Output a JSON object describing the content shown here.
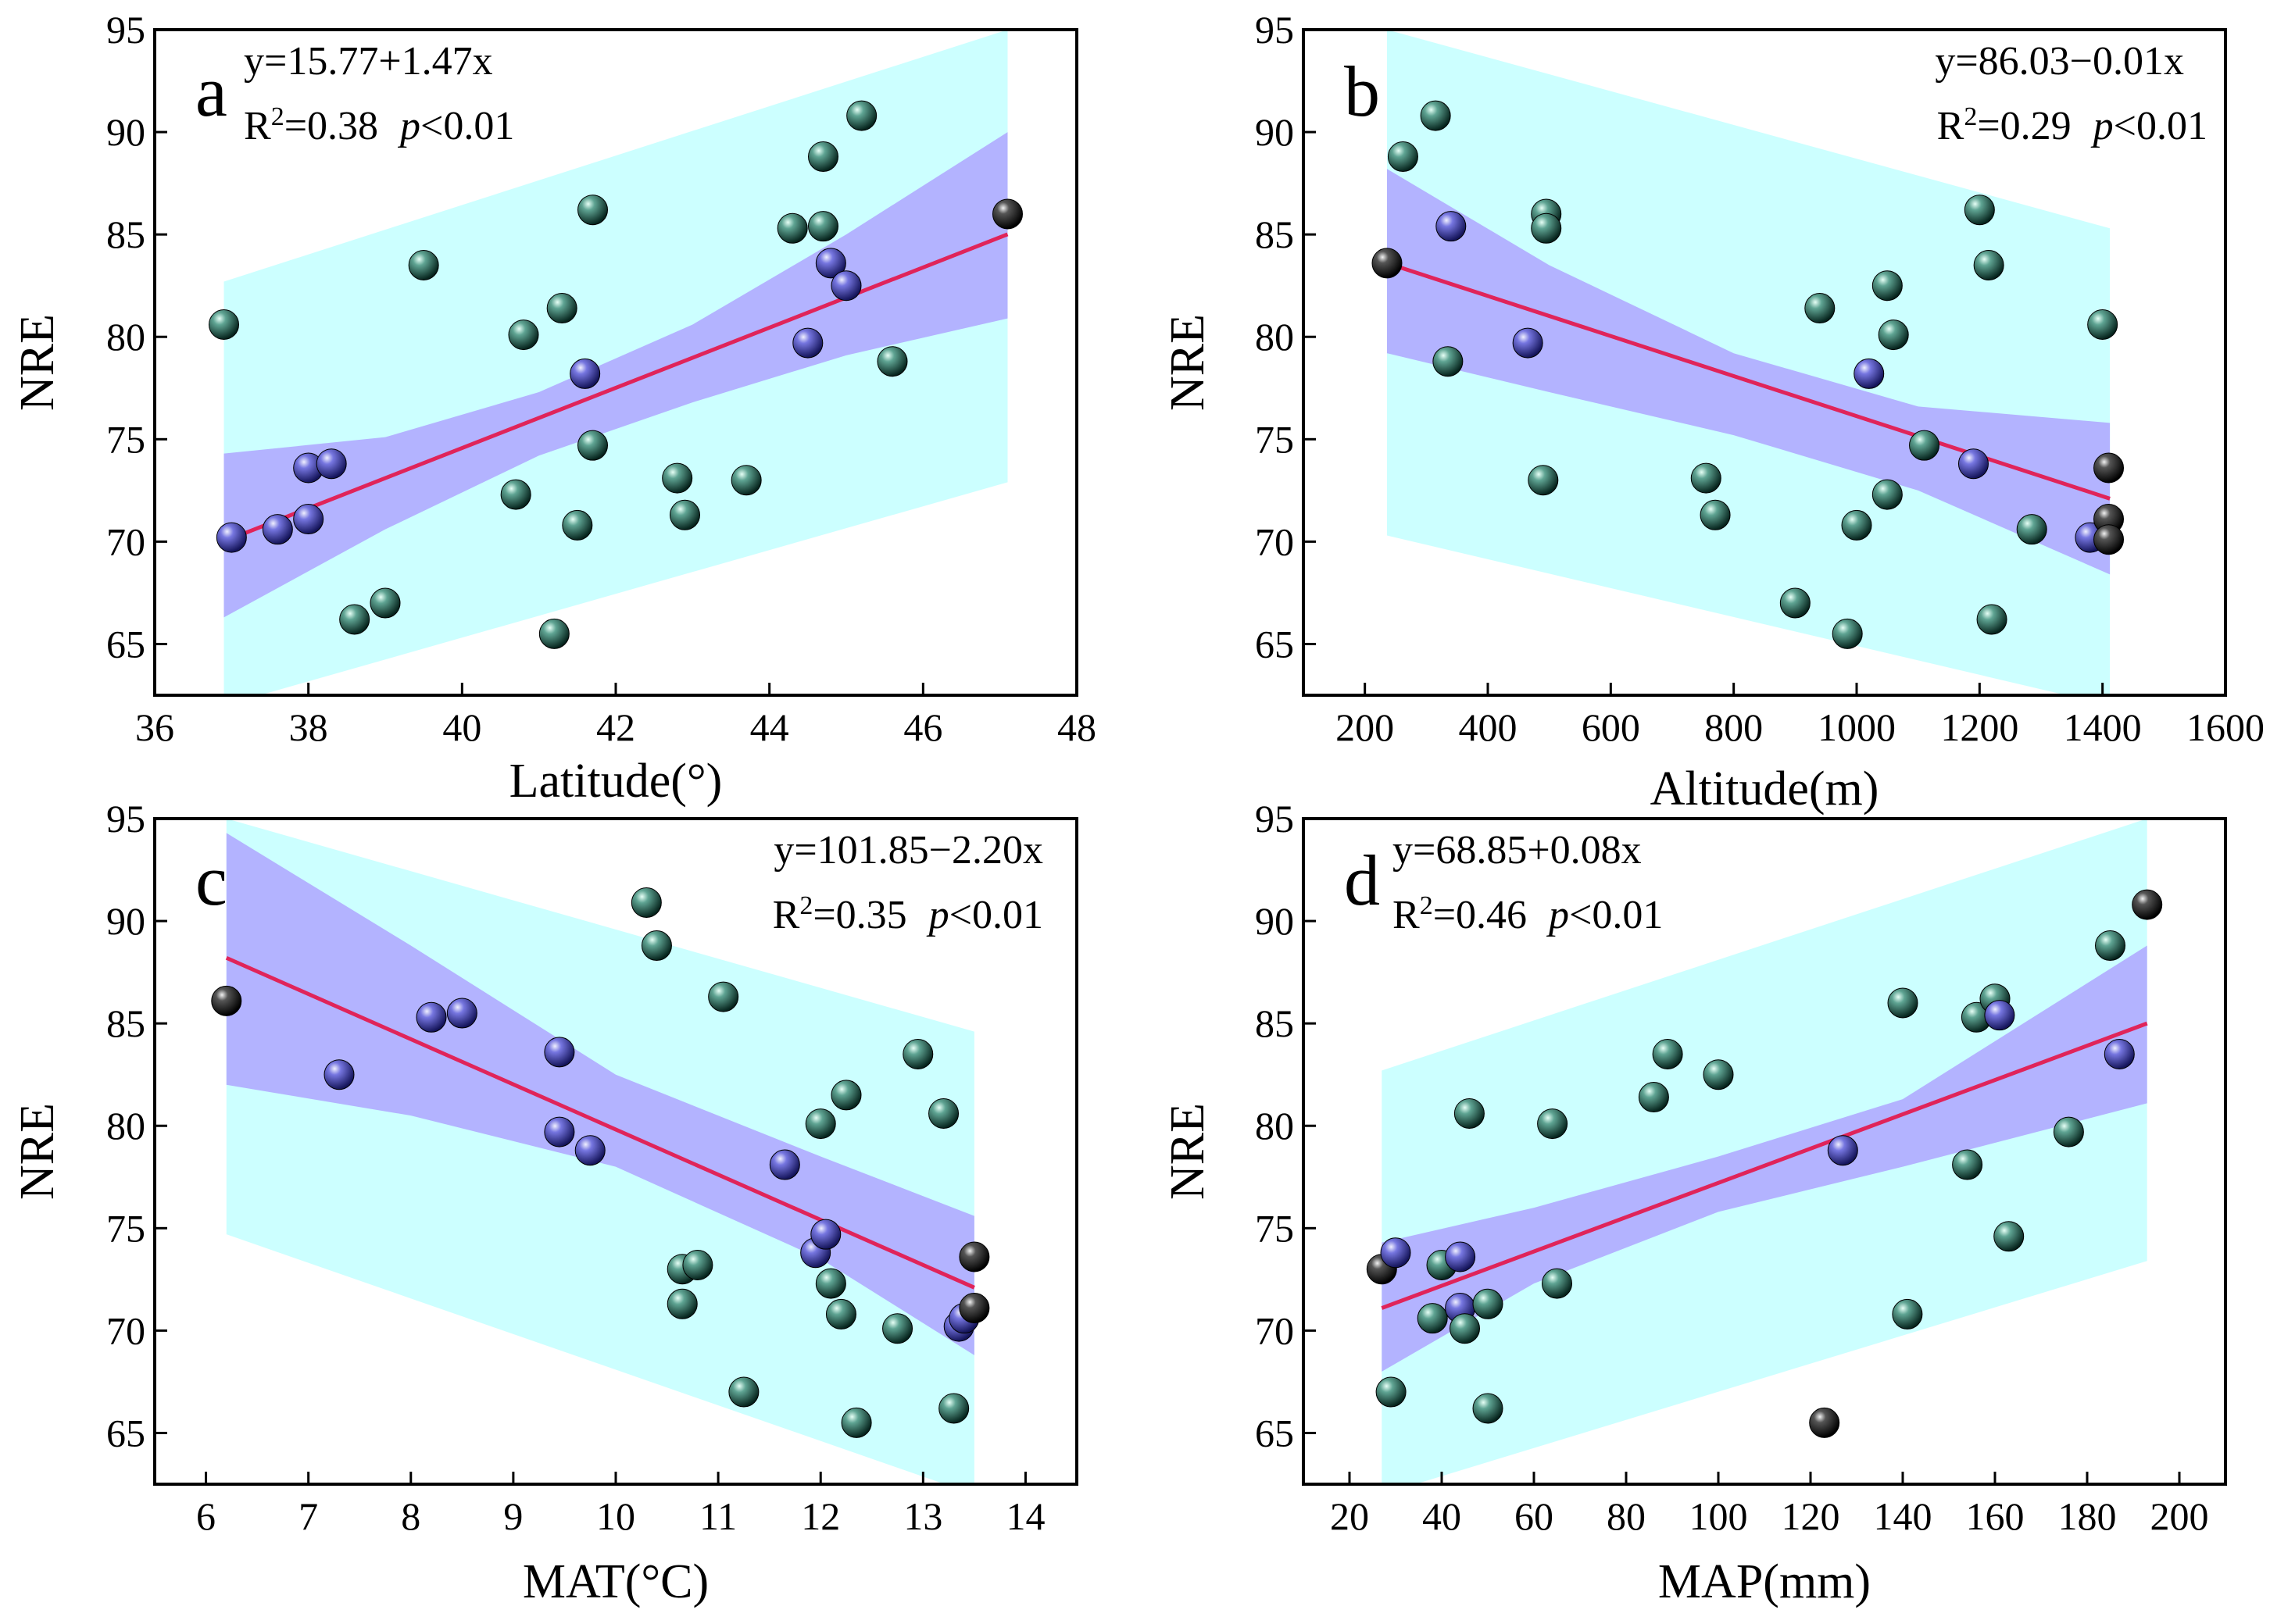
{
  "colors": {
    "prediction_band": "#ccffff",
    "confidence_band": "#b3b3ff",
    "fit_line": "#e0245a",
    "point_teal": "#1f5a4e",
    "point_blue": "#4a4ab8",
    "point_black": "#111111"
  },
  "chart_data": [
    {
      "type": "scatter",
      "panel": "a",
      "xlabel": "Latitude(°)",
      "ylabel": "NRE",
      "xlim": [
        36,
        48
      ],
      "ylim": [
        62.5,
        95
      ],
      "xticks": [
        36,
        38,
        40,
        42,
        44,
        46,
        48
      ],
      "yticks": [
        65,
        70,
        75,
        80,
        85,
        90,
        95
      ],
      "annotation": {
        "equation": "y=15.77+1.47x",
        "r2_prefix": "R",
        "r2_sup": "2",
        "r2_value": "=0.38",
        "p_label": "p",
        "p_value": "<0.01",
        "position": "top-left"
      },
      "fit": {
        "intercept": 15.77,
        "slope": 1.47,
        "x_range": [
          36.9,
          47.1
        ]
      },
      "confidence_band": {
        "x": [
          36.9,
          39.0,
          41.0,
          43.0,
          45.0,
          47.1
        ],
        "lower": [
          66.3,
          70.6,
          74.2,
          76.8,
          79.1,
          80.9
        ],
        "upper": [
          74.3,
          75.1,
          77.3,
          80.6,
          85.0,
          90.0
        ]
      },
      "prediction_band": {
        "x": [
          36.9,
          47.1
        ],
        "lower": [
          62.0,
          72.9
        ],
        "upper": [
          82.7,
          95.0
        ]
      },
      "points": [
        {
          "x": 36.9,
          "y": 80.6,
          "c": "teal"
        },
        {
          "x": 37.0,
          "y": 70.2,
          "c": "blue"
        },
        {
          "x": 37.6,
          "y": 70.6,
          "c": "blue"
        },
        {
          "x": 38.0,
          "y": 71.1,
          "c": "blue"
        },
        {
          "x": 38.0,
          "y": 73.6,
          "c": "blue"
        },
        {
          "x": 38.3,
          "y": 73.8,
          "c": "blue"
        },
        {
          "x": 38.6,
          "y": 66.2,
          "c": "teal"
        },
        {
          "x": 39.0,
          "y": 67.0,
          "c": "teal"
        },
        {
          "x": 39.5,
          "y": 83.5,
          "c": "teal"
        },
        {
          "x": 40.7,
          "y": 72.3,
          "c": "teal"
        },
        {
          "x": 40.8,
          "y": 80.1,
          "c": "teal"
        },
        {
          "x": 41.2,
          "y": 65.5,
          "c": "teal"
        },
        {
          "x": 41.3,
          "y": 81.4,
          "c": "teal"
        },
        {
          "x": 41.5,
          "y": 70.8,
          "c": "teal"
        },
        {
          "x": 41.6,
          "y": 78.2,
          "c": "blue"
        },
        {
          "x": 41.7,
          "y": 86.2,
          "c": "teal"
        },
        {
          "x": 41.7,
          "y": 74.7,
          "c": "teal"
        },
        {
          "x": 42.8,
          "y": 73.1,
          "c": "teal"
        },
        {
          "x": 42.9,
          "y": 71.3,
          "c": "teal"
        },
        {
          "x": 43.7,
          "y": 73.0,
          "c": "teal"
        },
        {
          "x": 44.3,
          "y": 85.3,
          "c": "teal"
        },
        {
          "x": 44.5,
          "y": 79.7,
          "c": "blue"
        },
        {
          "x": 44.7,
          "y": 88.8,
          "c": "teal"
        },
        {
          "x": 44.7,
          "y": 85.4,
          "c": "teal"
        },
        {
          "x": 44.8,
          "y": 83.6,
          "c": "blue"
        },
        {
          "x": 45.0,
          "y": 82.5,
          "c": "blue"
        },
        {
          "x": 45.2,
          "y": 90.8,
          "c": "teal"
        },
        {
          "x": 45.6,
          "y": 78.8,
          "c": "teal"
        },
        {
          "x": 47.1,
          "y": 86.0,
          "c": "black"
        }
      ]
    },
    {
      "type": "scatter",
      "panel": "b",
      "xlabel": "Altitude(m)",
      "ylabel": "NRE",
      "xlim": [
        100,
        1600
      ],
      "ylim": [
        62.5,
        95
      ],
      "xticks": [
        200,
        400,
        600,
        800,
        1000,
        1200,
        1400,
        1600
      ],
      "yticks": [
        65,
        70,
        75,
        80,
        85,
        90,
        95
      ],
      "annotation": {
        "equation": "y=86.03−0.01x",
        "r2_prefix": "R",
        "r2_sup": "2",
        "r2_value": "=0.29",
        "p_label": "p",
        "p_value": "<0.01",
        "position": "top-right"
      },
      "fit": {
        "intercept": 86.03,
        "slope": -0.01,
        "x_range": [
          236,
          1412
        ],
        "y_range": [
          83.6,
          72.1
        ]
      },
      "confidence_band": {
        "x": [
          236,
          500,
          800,
          1100,
          1412
        ],
        "lower": [
          79.2,
          77.3,
          75.2,
          72.5,
          68.4
        ],
        "upper": [
          88.2,
          83.5,
          79.2,
          76.6,
          75.8
        ]
      },
      "prediction_band": {
        "x": [
          236,
          1412
        ],
        "lower": [
          70.3,
          62.0
        ],
        "upper": [
          95.0,
          85.3
        ]
      },
      "points": [
        {
          "x": 236,
          "y": 83.6,
          "c": "black"
        },
        {
          "x": 262,
          "y": 88.8,
          "c": "teal"
        },
        {
          "x": 315,
          "y": 90.8,
          "c": "teal"
        },
        {
          "x": 340,
          "y": 85.4,
          "c": "blue"
        },
        {
          "x": 335,
          "y": 78.8,
          "c": "teal"
        },
        {
          "x": 465,
          "y": 79.7,
          "c": "blue"
        },
        {
          "x": 495,
          "y": 86.0,
          "c": "teal"
        },
        {
          "x": 495,
          "y": 85.3,
          "c": "teal"
        },
        {
          "x": 490,
          "y": 73.0,
          "c": "teal"
        },
        {
          "x": 755,
          "y": 73.1,
          "c": "teal"
        },
        {
          "x": 770,
          "y": 71.3,
          "c": "teal"
        },
        {
          "x": 900,
          "y": 67.0,
          "c": "teal"
        },
        {
          "x": 940,
          "y": 81.4,
          "c": "teal"
        },
        {
          "x": 985,
          "y": 65.5,
          "c": "teal"
        },
        {
          "x": 1000,
          "y": 70.8,
          "c": "teal"
        },
        {
          "x": 1020,
          "y": 78.2,
          "c": "blue"
        },
        {
          "x": 1050,
          "y": 82.5,
          "c": "teal"
        },
        {
          "x": 1050,
          "y": 72.3,
          "c": "teal"
        },
        {
          "x": 1060,
          "y": 80.1,
          "c": "teal"
        },
        {
          "x": 1110,
          "y": 74.7,
          "c": "teal"
        },
        {
          "x": 1190,
          "y": 73.8,
          "c": "blue"
        },
        {
          "x": 1200,
          "y": 86.2,
          "c": "teal"
        },
        {
          "x": 1215,
          "y": 83.5,
          "c": "teal"
        },
        {
          "x": 1220,
          "y": 66.2,
          "c": "teal"
        },
        {
          "x": 1285,
          "y": 70.6,
          "c": "teal"
        },
        {
          "x": 1380,
          "y": 70.2,
          "c": "blue"
        },
        {
          "x": 1400,
          "y": 80.6,
          "c": "teal"
        },
        {
          "x": 1410,
          "y": 73.6,
          "c": "black"
        },
        {
          "x": 1410,
          "y": 71.1,
          "c": "black"
        },
        {
          "x": 1410,
          "y": 70.1,
          "c": "black"
        }
      ]
    },
    {
      "type": "scatter",
      "panel": "c",
      "xlabel": "MAT(°C)",
      "ylabel": "NRE",
      "xlim": [
        5.5,
        14.5
      ],
      "ylim": [
        62.5,
        95
      ],
      "xticks": [
        6,
        7,
        8,
        9,
        10,
        11,
        12,
        13,
        14
      ],
      "yticks": [
        65,
        70,
        75,
        80,
        85,
        90,
        95
      ],
      "annotation": {
        "equation": "y=101.85−2.20x",
        "r2_prefix": "R",
        "r2_sup": "2",
        "r2_value": "=0.35",
        "p_label": "p",
        "p_value": "<0.01",
        "position": "top-right"
      },
      "fit": {
        "intercept": 101.85,
        "slope": -2.2,
        "x_range": [
          6.2,
          13.5
        ],
        "y_range": [
          88.2,
          72.1
        ]
      },
      "confidence_band": {
        "x": [
          6.2,
          8.0,
          10.0,
          12.0,
          13.5
        ],
        "lower": [
          82.0,
          80.5,
          78.0,
          73.5,
          68.8
        ],
        "upper": [
          94.3,
          88.8,
          82.5,
          78.5,
          75.6
        ]
      },
      "prediction_band": {
        "x": [
          6.2,
          13.5
        ],
        "lower": [
          74.7,
          62.0
        ],
        "upper": [
          95.0,
          84.6
        ]
      },
      "points": [
        {
          "x": 6.2,
          "y": 86.1,
          "c": "black"
        },
        {
          "x": 7.3,
          "y": 82.5,
          "c": "blue"
        },
        {
          "x": 8.2,
          "y": 85.3,
          "c": "blue"
        },
        {
          "x": 8.5,
          "y": 85.5,
          "c": "blue"
        },
        {
          "x": 9.45,
          "y": 83.6,
          "c": "blue"
        },
        {
          "x": 9.45,
          "y": 79.7,
          "c": "blue"
        },
        {
          "x": 9.75,
          "y": 78.8,
          "c": "blue"
        },
        {
          "x": 10.3,
          "y": 90.9,
          "c": "teal"
        },
        {
          "x": 10.4,
          "y": 88.8,
          "c": "teal"
        },
        {
          "x": 10.65,
          "y": 73.0,
          "c": "teal"
        },
        {
          "x": 10.8,
          "y": 73.2,
          "c": "teal"
        },
        {
          "x": 10.65,
          "y": 71.3,
          "c": "teal"
        },
        {
          "x": 11.05,
          "y": 86.3,
          "c": "teal"
        },
        {
          "x": 11.25,
          "y": 67.0,
          "c": "teal"
        },
        {
          "x": 11.65,
          "y": 78.1,
          "c": "blue"
        },
        {
          "x": 12.0,
          "y": 80.1,
          "c": "teal"
        },
        {
          "x": 11.95,
          "y": 73.8,
          "c": "blue"
        },
        {
          "x": 12.05,
          "y": 74.7,
          "c": "blue"
        },
        {
          "x": 12.1,
          "y": 72.3,
          "c": "teal"
        },
        {
          "x": 12.25,
          "y": 81.5,
          "c": "teal"
        },
        {
          "x": 12.2,
          "y": 70.8,
          "c": "teal"
        },
        {
          "x": 12.35,
          "y": 65.5,
          "c": "teal"
        },
        {
          "x": 12.75,
          "y": 70.1,
          "c": "teal"
        },
        {
          "x": 12.95,
          "y": 83.5,
          "c": "teal"
        },
        {
          "x": 13.2,
          "y": 80.6,
          "c": "teal"
        },
        {
          "x": 13.3,
          "y": 66.2,
          "c": "teal"
        },
        {
          "x": 13.35,
          "y": 70.2,
          "c": "blue"
        },
        {
          "x": 13.4,
          "y": 70.6,
          "c": "blue"
        },
        {
          "x": 13.5,
          "y": 73.6,
          "c": "black"
        },
        {
          "x": 13.5,
          "y": 71.1,
          "c": "black"
        }
      ]
    },
    {
      "type": "scatter",
      "panel": "d",
      "xlabel": "MAP(mm)",
      "ylabel": "NRE",
      "xlim": [
        10,
        210
      ],
      "ylim": [
        62.5,
        95
      ],
      "xticks": [
        20,
        40,
        60,
        80,
        100,
        120,
        140,
        160,
        180,
        200
      ],
      "yticks": [
        65,
        70,
        75,
        80,
        85,
        90,
        95
      ],
      "annotation": {
        "equation": "y=68.85+0.08x",
        "r2_prefix": "R",
        "r2_sup": "2",
        "r2_value": "=0.46",
        "p_label": "p",
        "p_value": "<0.01",
        "position": "top-left"
      },
      "fit": {
        "intercept": 68.85,
        "slope": 0.08,
        "x_range": [
          27,
          193
        ],
        "y_range": [
          71.1,
          85.0
        ]
      },
      "confidence_band": {
        "x": [
          27,
          60,
          100,
          140,
          193
        ],
        "lower": [
          68.0,
          72.3,
          75.8,
          78.0,
          81.1
        ],
        "upper": [
          74.3,
          76.0,
          78.5,
          81.3,
          88.8
        ]
      },
      "prediction_band": {
        "x": [
          27,
          193
        ],
        "lower": [
          62.0,
          73.4
        ],
        "upper": [
          82.7,
          95.0
        ]
      },
      "points": [
        {
          "x": 27,
          "y": 73.0,
          "c": "black"
        },
        {
          "x": 29,
          "y": 67.0,
          "c": "teal"
        },
        {
          "x": 30,
          "y": 73.8,
          "c": "blue"
        },
        {
          "x": 38,
          "y": 70.6,
          "c": "teal"
        },
        {
          "x": 40,
          "y": 73.2,
          "c": "teal"
        },
        {
          "x": 44,
          "y": 71.1,
          "c": "blue"
        },
        {
          "x": 44,
          "y": 73.6,
          "c": "blue"
        },
        {
          "x": 45,
          "y": 70.1,
          "c": "teal"
        },
        {
          "x": 46,
          "y": 80.6,
          "c": "teal"
        },
        {
          "x": 50,
          "y": 71.3,
          "c": "teal"
        },
        {
          "x": 50,
          "y": 66.2,
          "c": "teal"
        },
        {
          "x": 64,
          "y": 80.1,
          "c": "teal"
        },
        {
          "x": 65,
          "y": 72.3,
          "c": "teal"
        },
        {
          "x": 86,
          "y": 81.4,
          "c": "teal"
        },
        {
          "x": 89,
          "y": 83.5,
          "c": "teal"
        },
        {
          "x": 100,
          "y": 82.5,
          "c": "teal"
        },
        {
          "x": 123,
          "y": 65.5,
          "c": "black"
        },
        {
          "x": 127,
          "y": 78.8,
          "c": "blue"
        },
        {
          "x": 140,
          "y": 86.0,
          "c": "teal"
        },
        {
          "x": 141,
          "y": 70.8,
          "c": "teal"
        },
        {
          "x": 154,
          "y": 78.1,
          "c": "teal"
        },
        {
          "x": 156,
          "y": 85.3,
          "c": "teal"
        },
        {
          "x": 160,
          "y": 86.2,
          "c": "teal"
        },
        {
          "x": 161,
          "y": 85.4,
          "c": "blue"
        },
        {
          "x": 163,
          "y": 74.6,
          "c": "teal"
        },
        {
          "x": 176,
          "y": 79.7,
          "c": "teal"
        },
        {
          "x": 185,
          "y": 88.8,
          "c": "teal"
        },
        {
          "x": 187,
          "y": 83.5,
          "c": "blue"
        },
        {
          "x": 193,
          "y": 90.8,
          "c": "black"
        }
      ]
    }
  ]
}
